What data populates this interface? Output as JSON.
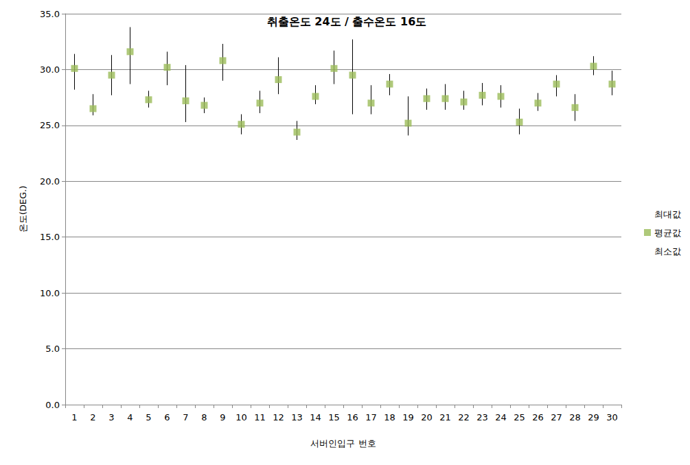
{
  "chart_data": {
    "type": "stock",
    "title": "취출온도 24도 / 출수온도 16도",
    "x_label": "서버인입구 번호",
    "y_label": "온도(DEG.)",
    "categories": [
      "1",
      "2",
      "3",
      "4",
      "5",
      "6",
      "7",
      "8",
      "9",
      "10",
      "11",
      "12",
      "13",
      "14",
      "15",
      "16",
      "17",
      "18",
      "19",
      "20",
      "21",
      "22",
      "23",
      "24",
      "25",
      "26",
      "27",
      "28",
      "29",
      "30"
    ],
    "series": [
      {
        "name": "최대값",
        "marker": "none",
        "values": [
          31.4,
          27.8,
          31.3,
          33.8,
          28.1,
          31.6,
          30.4,
          27.5,
          32.3,
          26.0,
          28.1,
          31.1,
          25.4,
          28.6,
          31.7,
          32.7,
          28.6,
          29.6,
          27.6,
          28.3,
          28.7,
          28.1,
          28.8,
          28.6,
          26.5,
          27.9,
          29.5,
          27.8,
          31.2,
          29.9
        ]
      },
      {
        "name": "평균값",
        "marker": "square",
        "color": "#9bbb59",
        "values": [
          30.1,
          26.5,
          29.5,
          31.6,
          27.3,
          30.2,
          27.2,
          26.8,
          30.8,
          25.1,
          27.0,
          29.1,
          24.4,
          27.6,
          30.1,
          29.5,
          27.0,
          28.7,
          25.2,
          27.4,
          27.4,
          27.1,
          27.7,
          27.6,
          25.3,
          27.0,
          28.7,
          26.6,
          30.3,
          28.7
        ]
      },
      {
        "name": "최소값",
        "marker": "none",
        "values": [
          28.2,
          25.9,
          27.7,
          28.7,
          26.6,
          28.6,
          25.3,
          26.1,
          29.0,
          24.2,
          26.1,
          27.8,
          23.7,
          26.9,
          28.7,
          26.0,
          26.0,
          27.7,
          24.1,
          26.4,
          26.4,
          26.4,
          26.8,
          26.6,
          24.2,
          26.3,
          27.6,
          25.4,
          29.5,
          27.7
        ]
      }
    ],
    "ylim": [
      0,
      35
    ],
    "yticks": [
      {
        "value": 0,
        "label": "0.0"
      },
      {
        "value": 5,
        "label": "5.0"
      },
      {
        "value": 10,
        "label": "10.0"
      },
      {
        "value": 15,
        "label": "15.0"
      },
      {
        "value": 20,
        "label": "20.0"
      },
      {
        "value": 25,
        "label": "25.0"
      },
      {
        "value": 30,
        "label": "30.0"
      },
      {
        "value": 35,
        "label": "35.0"
      }
    ],
    "grid": true,
    "legend": "right"
  }
}
